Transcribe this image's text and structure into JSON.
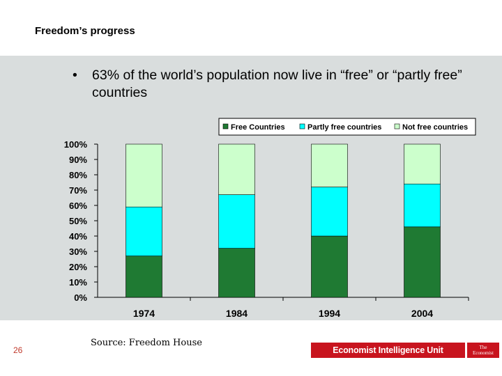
{
  "slide": {
    "title": "Freedom’s progress",
    "bullet_symbol": "•",
    "bullet": "63% of the world’s population now live in “free” or “partly free” countries",
    "page_number": "26",
    "source": "Source: Freedom House",
    "brand": "Economist Intelligence Unit",
    "brand_mark_line1": "The",
    "brand_mark_line2": "Economist"
  },
  "colors": {
    "free": "#1f7a33",
    "partly": "#00ffff",
    "not_free": "#ccffcc",
    "panel": "#d9dddd"
  },
  "chart_data": {
    "type": "bar",
    "stacked": true,
    "categories": [
      "1974",
      "1984",
      "1994",
      "2004"
    ],
    "series": [
      {
        "name": "Free Countries",
        "values": [
          27,
          32,
          40,
          46
        ]
      },
      {
        "name": "Partly free countries",
        "values": [
          32,
          35,
          32,
          28
        ]
      },
      {
        "name": "Not free countries",
        "values": [
          41,
          33,
          28,
          26
        ]
      }
    ],
    "y_ticks": [
      "0%",
      "10%",
      "20%",
      "30%",
      "40%",
      "50%",
      "60%",
      "70%",
      "80%",
      "90%",
      "100%"
    ],
    "ylim": [
      0,
      100
    ],
    "legend_position": "top-right",
    "grid": false
  }
}
